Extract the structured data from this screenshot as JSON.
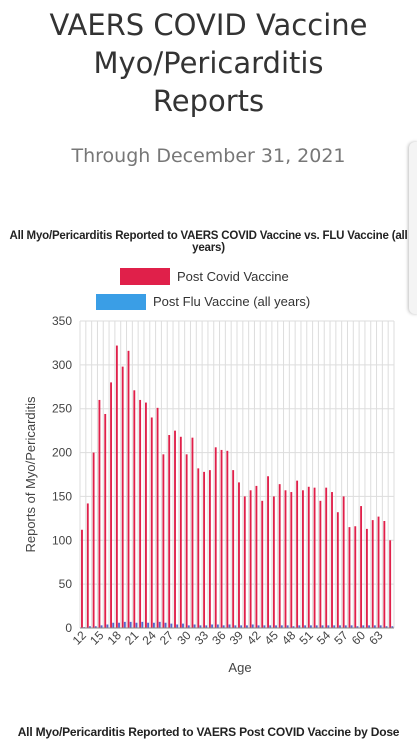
{
  "header": {
    "title": "VAERS COVID Vaccine Myo/Pericarditis Reports",
    "subtitle": "Through December 31, 2021"
  },
  "bottom_title": "All Myo/Pericarditis Reported to VAERS Post COVID Vaccine by Dose",
  "colors": {
    "covid": "#e0204a",
    "flu": "#3a9ee6",
    "grid": "#dddddd",
    "title": "#333333"
  },
  "chart_data": {
    "type": "bar",
    "title": "All Myo/Pericarditis Reported to VAERS COVID Vaccine vs. FLU Vaccine (all years)",
    "xlabel": "Age",
    "ylabel": "Reports of Myo/Pericarditis",
    "ylim": [
      0,
      350
    ],
    "yticks": [
      0,
      50,
      100,
      150,
      200,
      250,
      300,
      350
    ],
    "grid": true,
    "legend": "top-center",
    "categories": [
      12,
      13,
      14,
      15,
      16,
      17,
      18,
      19,
      20,
      21,
      22,
      23,
      24,
      25,
      26,
      27,
      28,
      29,
      30,
      31,
      32,
      33,
      34,
      35,
      36,
      37,
      38,
      39,
      40,
      41,
      42,
      43,
      44,
      45,
      46,
      47,
      48,
      49,
      50,
      51,
      52,
      53,
      54,
      55,
      56,
      57,
      58,
      59,
      60,
      61,
      62,
      63,
      64,
      65
    ],
    "tick_labels": [
      "12",
      "15",
      "18",
      "21",
      "24",
      "27",
      "30",
      "33",
      "36",
      "39",
      "42",
      "45",
      "48",
      "51",
      "54",
      "57",
      "60",
      "63"
    ],
    "series": [
      {
        "name": "Post Covid Vaccine",
        "values": [
          112,
          142,
          200,
          260,
          244,
          280,
          322,
          298,
          316,
          271,
          260,
          257,
          240,
          251,
          198,
          220,
          225,
          218,
          198,
          217,
          182,
          178,
          180,
          206,
          203,
          202,
          180,
          166,
          150,
          157,
          162,
          145,
          173,
          150,
          164,
          157,
          155,
          168,
          157,
          161,
          160,
          145,
          160,
          155,
          132,
          150,
          115,
          116,
          139,
          113,
          123,
          127,
          122,
          100
        ]
      },
      {
        "name": "Post Flu Vaccine (all years)",
        "values": [
          1,
          2,
          2,
          3,
          4,
          6,
          6,
          7,
          7,
          6,
          7,
          6,
          6,
          7,
          6,
          5,
          4,
          5,
          3,
          4,
          3,
          3,
          4,
          4,
          3,
          4,
          3,
          3,
          3,
          4,
          3,
          3,
          3,
          3,
          3,
          3,
          2,
          3,
          3,
          3,
          3,
          3,
          3,
          3,
          3,
          3,
          3,
          2,
          3,
          3,
          3,
          3,
          2,
          2
        ]
      }
    ]
  }
}
